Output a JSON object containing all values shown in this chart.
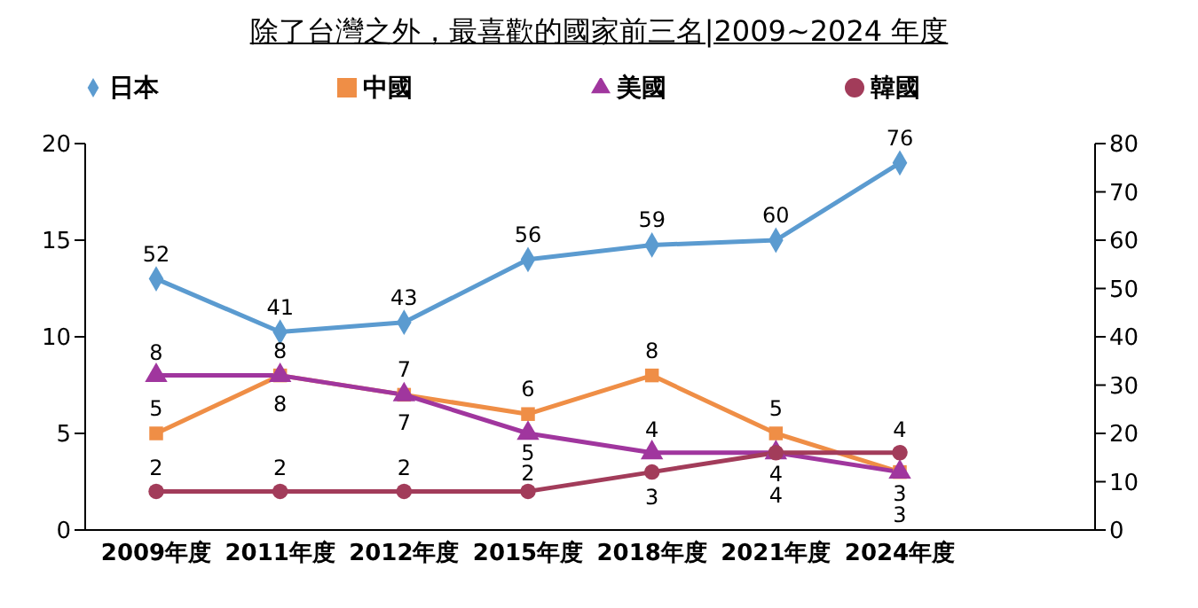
{
  "chart_data": {
    "type": "line",
    "title": "除了台灣之外，最喜歡的國家前三名|2009~2024 年度",
    "categories": [
      "2009年度",
      "2011年度",
      "2012年度",
      "2015年度",
      "2018年度",
      "2021年度",
      "2024年度"
    ],
    "series": [
      {
        "name": "日本",
        "color": "#5b9bd0",
        "marker": "diamond",
        "axis": "y2",
        "values": [
          52,
          41,
          43,
          56,
          59,
          60,
          76
        ]
      },
      {
        "name": "中國",
        "color": "#ef8e46",
        "marker": "square",
        "values": [
          5,
          8,
          7,
          6,
          8,
          5,
          3
        ]
      },
      {
        "name": "美國",
        "color": "#a0369e",
        "marker": "triangle",
        "values": [
          8,
          8,
          7,
          5,
          4,
          4,
          3
        ]
      },
      {
        "name": "韓國",
        "color": "#a23c5a",
        "marker": "circle",
        "values": [
          2,
          2,
          2,
          2,
          3,
          4,
          4
        ]
      }
    ],
    "ylim": [
      0,
      20
    ],
    "yticks": [
      0,
      5,
      10,
      15,
      20
    ],
    "y2lim": [
      0,
      80
    ],
    "y2ticks": [
      0,
      10,
      20,
      30,
      40,
      50,
      60,
      70,
      80
    ],
    "grid": false,
    "legend": "top",
    "data_labels": true
  }
}
